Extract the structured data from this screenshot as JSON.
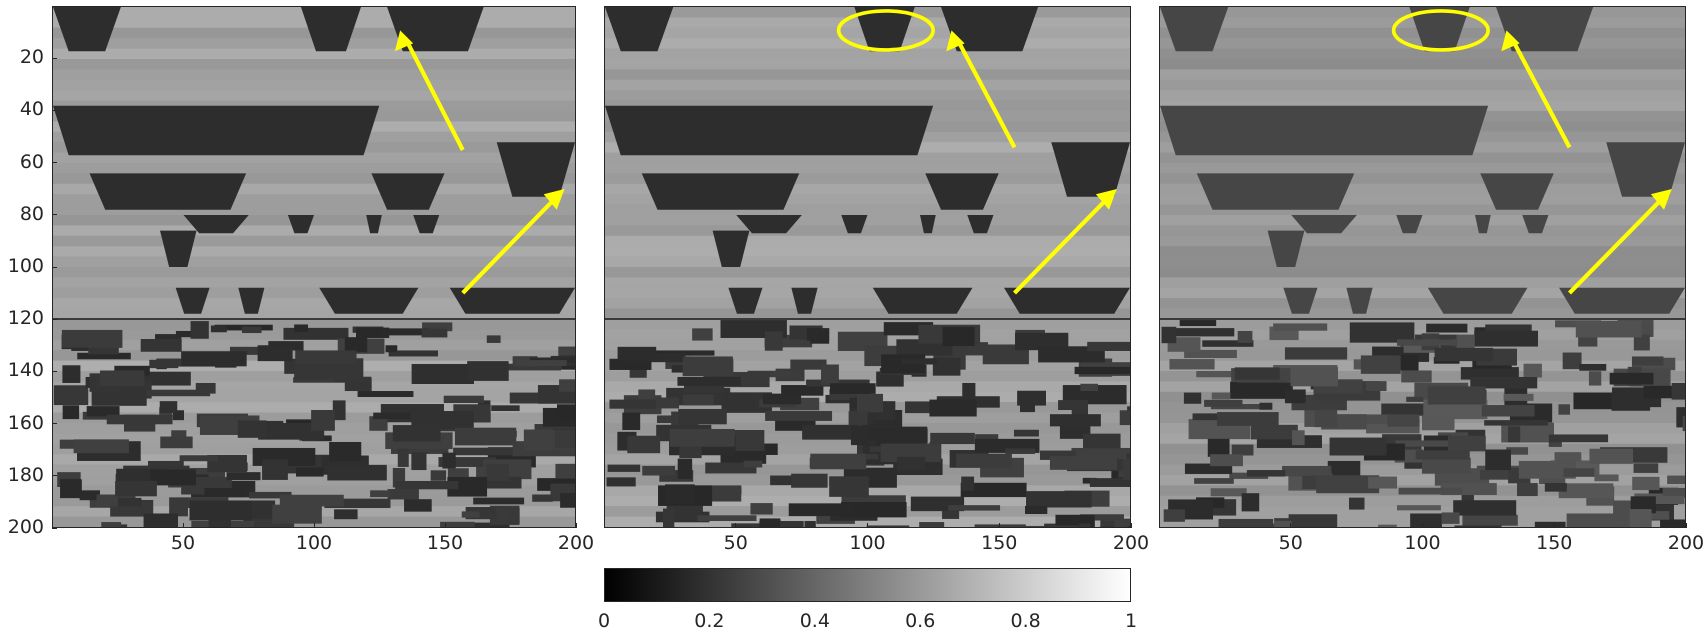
{
  "figure": {
    "panels": [
      {
        "id": "panel-1",
        "has_y_axis": true,
        "has_ellipse": false
      },
      {
        "id": "panel-2",
        "has_y_axis": false,
        "has_ellipse": true
      },
      {
        "id": "panel-3",
        "has_y_axis": false,
        "has_ellipse": true
      }
    ],
    "y_tick_labels": [
      "20",
      "40",
      "60",
      "80",
      "100",
      "120",
      "140",
      "160",
      "180",
      "200"
    ],
    "x_tick_labels": [
      "50",
      "100",
      "150",
      "200"
    ],
    "colorbar": {
      "tick_labels": [
        "0",
        "0.2",
        "0.4",
        "0.6",
        "0.8",
        "1"
      ],
      "colormap": "gray"
    },
    "annotation_color": "#ffff00",
    "annotations": [
      "arrow",
      "arrow",
      "ellipse"
    ]
  }
}
